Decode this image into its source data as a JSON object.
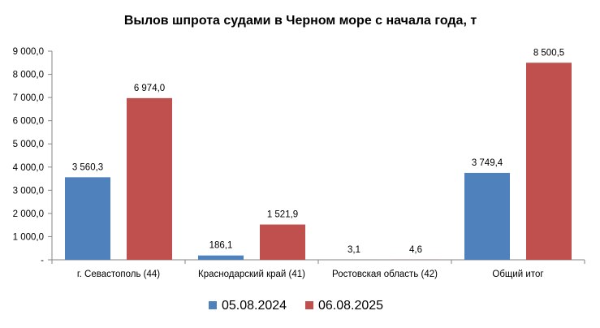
{
  "chart_data": {
    "type": "bar",
    "title": "Вылов шпрота судами в Черном море с начала  года, т",
    "categories": [
      "г. Севастополь (44)",
      "Краснодарский край (41)",
      "Ростовская область (42)",
      "Общий итог"
    ],
    "series": [
      {
        "name": "05.08.2024",
        "color": "#4f81bd",
        "values": [
          3560.3,
          186.1,
          3.1,
          3749.4
        ],
        "labels": [
          "3 560,3",
          "186,1",
          "3,1",
          "3 749,4"
        ]
      },
      {
        "name": "06.08.2025",
        "color": "#c0504d",
        "values": [
          6974.0,
          1521.9,
          4.6,
          8500.5
        ],
        "labels": [
          "6 974,0",
          "1 521,9",
          "4,6",
          "8 500,5"
        ]
      }
    ],
    "ylim": [
      0,
      9000
    ],
    "yticks": [
      0,
      1000,
      2000,
      3000,
      4000,
      5000,
      6000,
      7000,
      8000,
      9000
    ],
    "ytick_labels": [
      "-",
      "1 000,0",
      "2 000,0",
      "3 000,0",
      "4 000,0",
      "5 000,0",
      "6 000,0",
      "7 000,0",
      "8 000,0",
      "9 000,0"
    ],
    "grid": false,
    "legend_position": "bottom",
    "xlabel": "",
    "ylabel": ""
  }
}
